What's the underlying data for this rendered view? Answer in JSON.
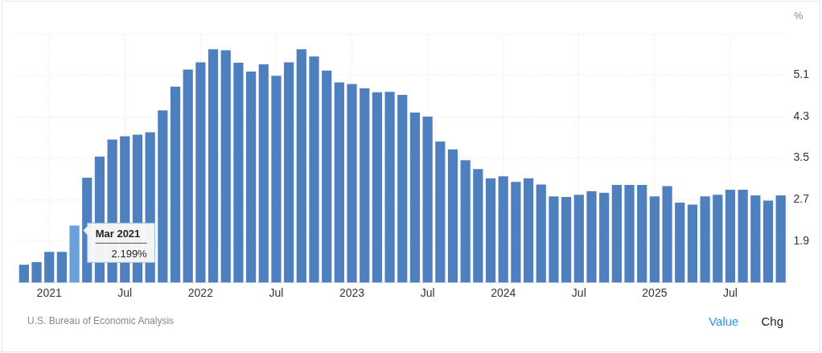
{
  "chart_data": {
    "type": "bar",
    "ylabel": "%",
    "categories": [
      null,
      null,
      "2021",
      null,
      null,
      null,
      null,
      null,
      "Jul",
      null,
      null,
      null,
      null,
      null,
      "2022",
      null,
      null,
      null,
      null,
      null,
      "Jul",
      null,
      null,
      null,
      null,
      null,
      "2023",
      null,
      null,
      null,
      null,
      null,
      "Jul",
      null,
      null,
      null,
      null,
      null,
      "2024",
      null,
      null,
      null,
      null,
      null,
      "Jul",
      null,
      null,
      null,
      null,
      null,
      "2025",
      null,
      null,
      null,
      null,
      null,
      "Jul",
      null,
      null,
      null,
      null
    ],
    "values": [
      1.44,
      1.49,
      1.69,
      1.69,
      2.199,
      3.12,
      3.53,
      3.86,
      3.92,
      3.95,
      4.0,
      4.42,
      4.88,
      5.21,
      5.35,
      5.6,
      5.58,
      5.34,
      5.17,
      5.31,
      5.09,
      5.35,
      5.6,
      5.46,
      5.19,
      4.96,
      4.93,
      4.85,
      4.77,
      4.78,
      4.72,
      4.38,
      4.3,
      3.82,
      3.67,
      3.46,
      3.29,
      3.11,
      3.15,
      3.04,
      3.11,
      2.99,
      2.76,
      2.75,
      2.79,
      2.86,
      2.83,
      2.98,
      2.98,
      2.98,
      2.76,
      2.96,
      2.64,
      2.6,
      2.76,
      2.79,
      2.89,
      2.89,
      2.78,
      2.68,
      2.78
    ],
    "colors": [
      "#4e80bf",
      "#4e80bf",
      "#4e80bf",
      "#4e80bf",
      "#6a9fd9",
      "#4e80bf",
      "#4e80bf",
      "#4e80bf",
      "#4e80bf",
      "#4e80bf",
      "#4e80bf",
      "#4e80bf",
      "#4e80bf",
      "#4e80bf",
      "#4e80bf",
      "#4e80bf",
      "#4e80bf",
      "#4e80bf",
      "#4e80bf",
      "#4e80bf",
      "#4e80bf",
      "#4e80bf",
      "#4e80bf",
      "#4e80bf",
      "#4e80bf",
      "#4e80bf",
      "#4e80bf",
      "#4e80bf",
      "#4e80bf",
      "#4e80bf",
      "#4e80bf",
      "#4e80bf",
      "#4e80bf",
      "#4e80bf",
      "#4e80bf",
      "#4e80bf",
      "#4e80bf",
      "#4e80bf",
      "#4e80bf",
      "#4e80bf",
      "#4e80bf",
      "#4e80bf",
      "#4e80bf",
      "#4e80bf",
      "#4e80bf",
      "#4e80bf",
      "#4e80bf",
      "#4e80bf",
      "#4e80bf",
      "#4e80bf",
      "#4e80bf",
      "#4e80bf",
      "#4e80bf",
      "#4e80bf",
      "#4e80bf",
      "#4e80bf",
      "#4e80bf",
      "#4e80bf",
      "#4e80bf",
      "#4e80bf",
      "#4e80bf"
    ],
    "ylim": [
      1.1,
      5.9
    ],
    "yticks": [
      {
        "value": 1.1,
        "label": null
      },
      1.9,
      2.7,
      3.5,
      4.3,
      5.1,
      {
        "value": 5.9,
        "label": null
      }
    ],
    "grid": true,
    "legend": false,
    "annotations": [
      "U.S. Bureau of Economic Analysis",
      {
        "text": "Mar 2021",
        "y": 2.199
      },
      {
        "text": "2.199%",
        "y": 2.199
      },
      "Value",
      "Chg"
    ]
  }
}
